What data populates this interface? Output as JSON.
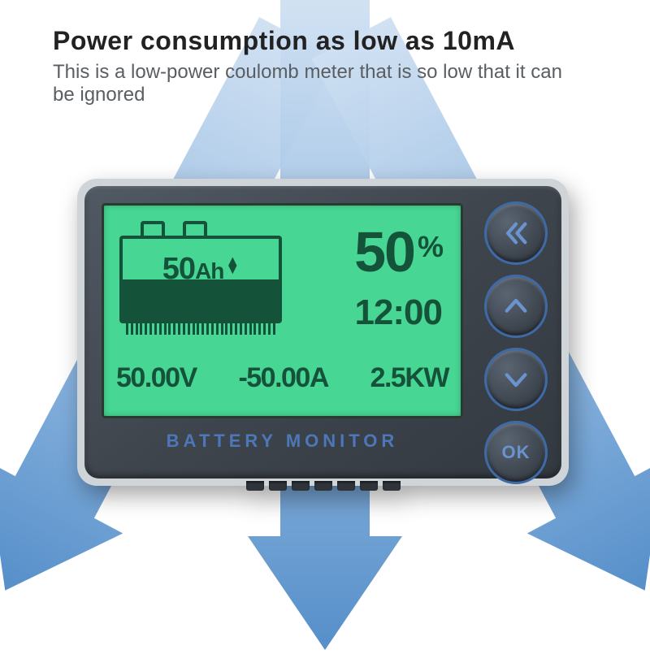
{
  "headline": {
    "title": "Power consumption as low as 10mA",
    "subtitle": "This is a low-power coulomb meter that is so low that it can be ignored",
    "title_color": "#222222",
    "title_fontsize": 32,
    "subtitle_color": "#5a5e63",
    "subtitle_fontsize": 24
  },
  "arrows": {
    "color_light": "#cfe0f2",
    "color_mid": "#8db6e0",
    "color_dark": "#4d89c7",
    "shaft_width": 110,
    "head_width": 180
  },
  "device": {
    "bezel_outer_color": "#cfd4d8",
    "bezel_inner_color_top": "#515963",
    "bezel_inner_color_bottom": "#333940",
    "corner_radius": 24,
    "label": "BATTERY MONITOR",
    "label_color": "#4d77b8",
    "label_fontsize": 22,
    "notch_count": 7,
    "notch_color": "#2e343a"
  },
  "lcd": {
    "bg_color": "#47d693",
    "text_color": "#145239",
    "battery": {
      "capacity_value": "50",
      "capacity_unit": "Ah",
      "direction_indicator": "▲▼",
      "fill_percent": 50,
      "tick_count": 32
    },
    "percent": {
      "value": "50",
      "unit": "%"
    },
    "time": "12:00",
    "readouts": {
      "voltage": "50.00V",
      "current": "-50.00A",
      "power": "2.5KW"
    }
  },
  "buttons": {
    "ring_color": "#3f6aa8",
    "glyph_color": "#6a93cf",
    "items": [
      {
        "name": "back",
        "glyph": "double-chevron-left"
      },
      {
        "name": "up",
        "glyph": "chevron-up"
      },
      {
        "name": "down",
        "glyph": "chevron-down"
      },
      {
        "name": "ok",
        "glyph": "ok-text",
        "label": "OK"
      }
    ]
  }
}
